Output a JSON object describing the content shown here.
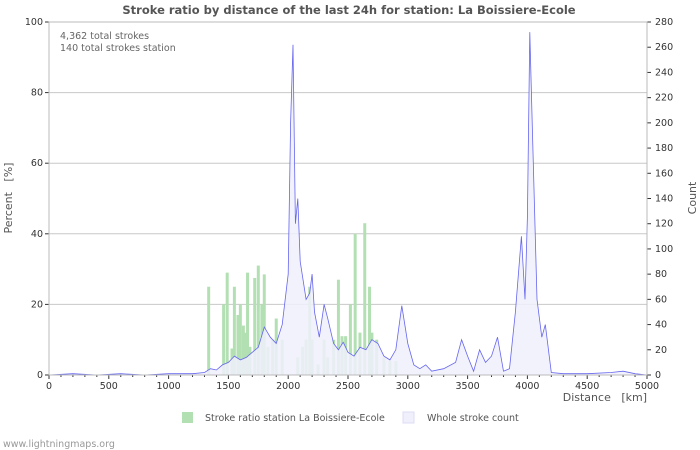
{
  "chart_data": {
    "type": "bar",
    "title": "Stroke ratio by distance of the last 24h for station: La Boissiere-Ecole",
    "xlabel": "Distance   [km]",
    "ylabel": "Percent   [%]",
    "y2label": "Count",
    "xlim": [
      0,
      5000
    ],
    "ylim": [
      0,
      100
    ],
    "y2lim": [
      0,
      280
    ],
    "xticks": [
      0,
      500,
      1000,
      1500,
      2000,
      2500,
      3000,
      3500,
      4000,
      4500,
      5000
    ],
    "yticks": [
      0,
      20,
      40,
      60,
      80,
      100
    ],
    "y2ticks": [
      0,
      20,
      40,
      60,
      80,
      100,
      120,
      140,
      160,
      180,
      200,
      220,
      240,
      260,
      280
    ],
    "annotations": [
      "4,362 total strokes",
      "140 total strokes station"
    ],
    "legend": [
      "Stroke ratio station La Boissiere-Ecole",
      "Whole stroke count"
    ],
    "legend_position": "bottom",
    "grid": true,
    "colors": {
      "bar": "#b3e0b3",
      "line": "#6666ee",
      "area": "#f0f0fc"
    },
    "series": [
      {
        "name": "Stroke ratio station La Boissiere-Ecole",
        "type": "bar",
        "x": [
          1335,
          1460,
          1490,
          1530,
          1550,
          1580,
          1600,
          1625,
          1640,
          1660,
          1680,
          1720,
          1750,
          1780,
          1800,
          1830,
          1870,
          1900,
          1950,
          2080,
          2120,
          2150,
          2180,
          2200,
          2250,
          2300,
          2330,
          2380,
          2420,
          2450,
          2480,
          2520,
          2560,
          2600,
          2640,
          2680,
          2700,
          2740,
          2800,
          2850,
          2900
        ],
        "values": [
          25,
          20,
          29,
          7.5,
          25,
          17,
          20,
          14,
          12,
          29,
          8,
          27.5,
          31,
          20,
          28.5,
          8,
          10,
          16,
          10,
          5,
          8,
          10,
          25,
          10,
          3,
          10,
          5,
          10,
          27,
          11,
          11,
          20,
          40,
          12,
          43,
          25,
          12,
          10,
          5,
          4,
          4
        ]
      },
      {
        "name": "Whole stroke count",
        "type": "line",
        "x": [
          0,
          200,
          400,
          600,
          800,
          1000,
          1200,
          1300,
          1350,
          1400,
          1450,
          1500,
          1550,
          1600,
          1650,
          1700,
          1750,
          1800,
          1850,
          1900,
          1950,
          2000,
          2020,
          2040,
          2060,
          2080,
          2100,
          2150,
          2180,
          2200,
          2220,
          2260,
          2300,
          2330,
          2380,
          2420,
          2460,
          2500,
          2550,
          2600,
          2650,
          2700,
          2750,
          2800,
          2850,
          2900,
          2950,
          3000,
          3050,
          3100,
          3150,
          3200,
          3300,
          3400,
          3450,
          3500,
          3550,
          3600,
          3650,
          3700,
          3750,
          3800,
          3850,
          3900,
          3950,
          3980,
          4000,
          4020,
          4040,
          4080,
          4120,
          4150,
          4200,
          4300,
          4500,
          4700,
          4800,
          4900,
          5000
        ],
        "values": [
          0,
          1,
          0,
          1,
          0,
          1,
          1,
          2,
          5,
          4,
          8,
          10,
          15,
          12,
          14,
          18,
          22,
          38,
          30,
          25,
          40,
          80,
          200,
          262,
          120,
          140,
          90,
          60,
          65,
          80,
          50,
          30,
          56,
          45,
          25,
          20,
          26,
          18,
          15,
          22,
          20,
          28,
          25,
          15,
          12,
          20,
          55,
          25,
          8,
          5,
          8,
          3,
          5,
          10,
          28,
          15,
          3,
          20,
          10,
          15,
          30,
          3,
          5,
          50,
          110,
          60,
          125,
          272,
          200,
          60,
          30,
          40,
          2,
          1,
          1,
          2,
          3,
          1,
          0
        ]
      }
    ]
  },
  "footer": "www.lightningmaps.org"
}
